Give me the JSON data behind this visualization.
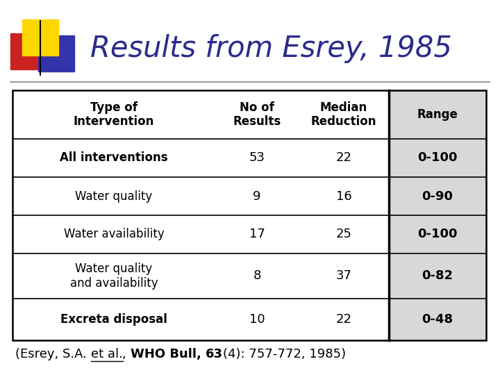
{
  "title": "Results from Esrey, 1985",
  "title_color": "#2B2B8C",
  "title_fontsize": 30,
  "background_color": "#FFFFFF",
  "headers": [
    "Type of\nIntervention",
    "No of\nResults",
    "Median\nReduction",
    "Range"
  ],
  "rows": [
    [
      "All interventions",
      "53",
      "22",
      "0-100"
    ],
    [
      "Water quality",
      "9",
      "16",
      "0-90"
    ],
    [
      "Water availability",
      "17",
      "25",
      "0-100"
    ],
    [
      "Water quality\nand availability",
      "8",
      "37",
      "0-82"
    ],
    [
      "Excreta disposal",
      "10",
      "22",
      "0-48"
    ]
  ],
  "col0_weights": [
    "bold",
    "normal",
    "normal",
    "normal",
    "bold"
  ],
  "deco_yellow": "#FFD700",
  "deco_red": "#CC2222",
  "deco_blue": "#3333AA",
  "range_bg": "#D8D8D8",
  "table_border_color": "#000000",
  "citation_normal": "(Esrey, S.A. ",
  "citation_etal": "et al.",
  "citation_comma": ", ",
  "citation_who": "WHO Bull, ",
  "citation_bold63": "63",
  "citation_end": "(4): 757-772, 1985)"
}
